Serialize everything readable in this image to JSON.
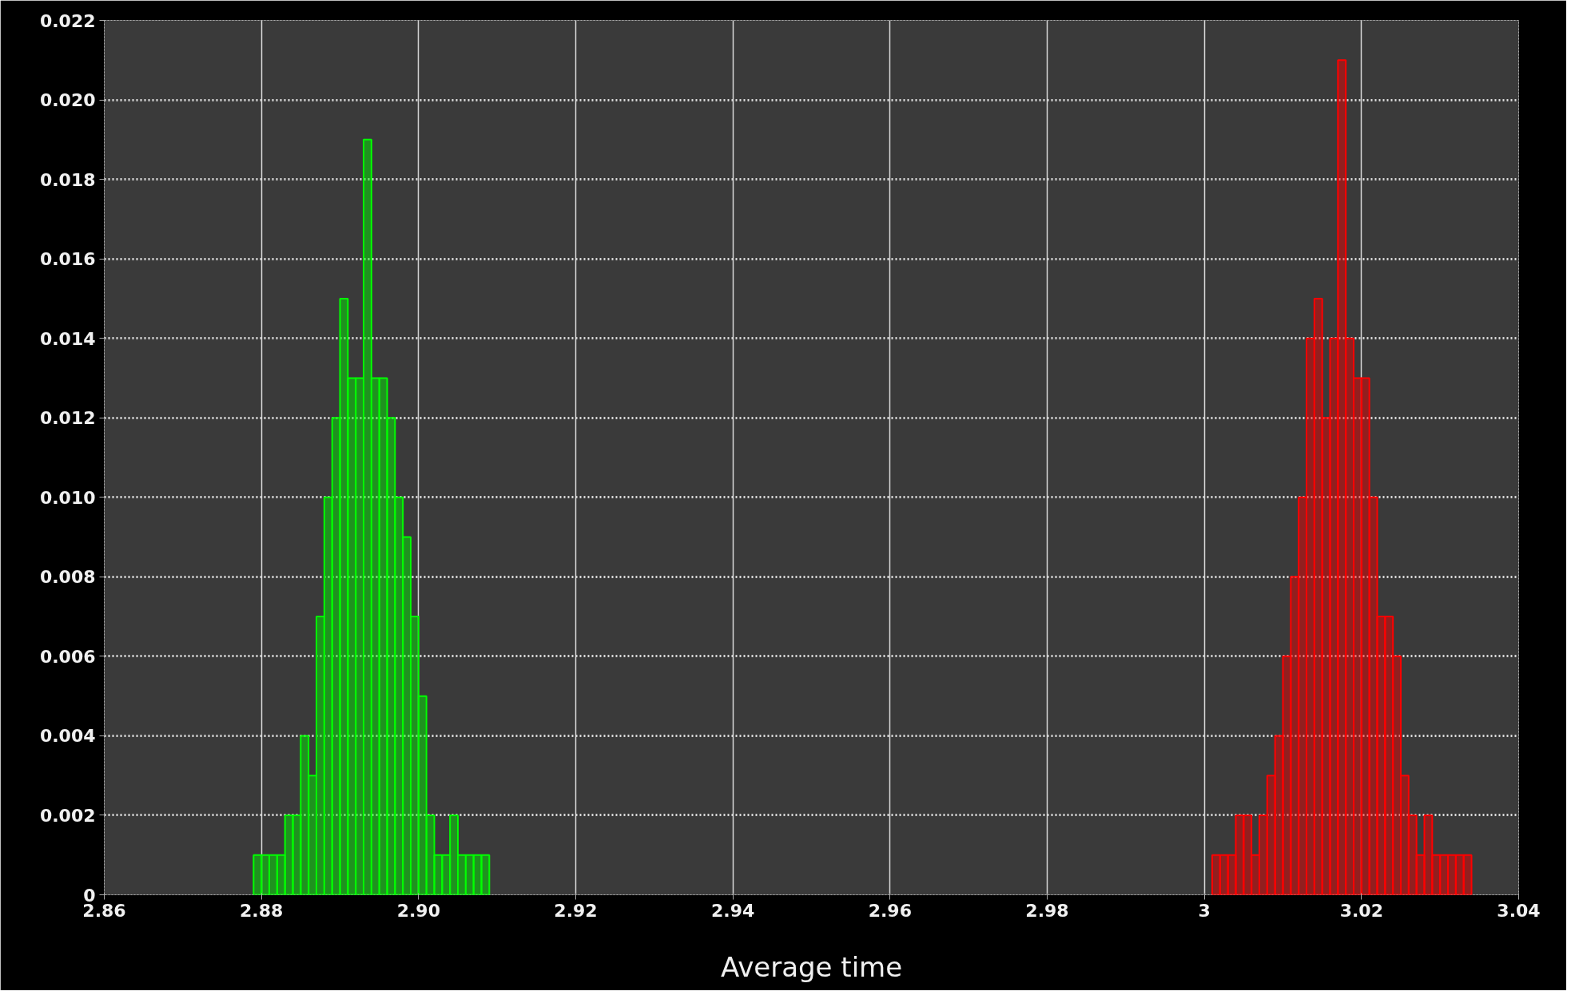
{
  "chart_data": {
    "type": "histogram",
    "xlabel": "Average time",
    "bins": [
      2.879,
      2.88,
      2.881,
      2.882,
      2.883,
      2.884,
      2.885,
      2.886,
      2.887,
      2.888,
      2.889,
      2.89,
      2.891,
      2.892,
      2.893,
      2.894,
      2.895,
      2.896,
      2.897,
      2.898,
      2.899,
      2.9,
      2.901,
      2.902,
      2.903,
      2.904,
      2.905,
      2.906,
      2.907,
      2.908,
      2.909,
      2.91,
      2.911,
      2.912,
      2.913,
      2.914,
      2.915,
      2.916,
      2.917,
      2.918,
      2.919,
      2.92,
      2.921,
      2.922,
      2.923,
      2.924,
      2.925,
      2.926,
      2.927,
      2.928,
      2.929,
      2.93,
      2.931,
      2.932,
      2.933,
      2.934,
      2.935,
      2.936,
      2.937,
      2.938,
      2.939,
      2.94,
      2.941,
      2.942,
      2.943,
      2.944,
      2.945,
      2.946,
      2.947,
      2.948,
      2.949,
      2.95,
      2.951,
      2.952,
      2.953,
      2.954,
      2.955,
      2.956,
      2.957,
      2.958,
      2.959,
      2.96,
      2.961,
      2.962,
      2.963,
      2.964,
      2.965,
      2.966,
      2.967,
      2.968,
      2.969,
      2.97,
      2.971,
      2.972,
      2.973,
      2.974,
      2.975,
      2.976,
      2.977,
      2.978,
      2.979,
      2.98,
      2.981,
      2.982,
      2.983,
      2.984,
      2.985,
      2.986,
      2.987,
      2.988,
      2.989,
      2.99,
      2.991,
      2.992,
      2.993,
      2.994,
      2.995,
      2.996,
      2.997,
      2.998,
      2.999,
      3.0,
      3.001,
      3.002,
      3.003,
      3.004,
      3.005,
      3.006,
      3.007,
      3.008,
      3.009,
      3.01,
      3.011,
      3.012,
      3.013,
      3.014,
      3.015,
      3.016,
      3.017,
      3.018,
      3.019,
      3.02,
      3.021,
      3.022,
      3.023,
      3.024,
      3.025,
      3.026,
      3.027,
      3.028,
      3.029,
      3.03,
      3.031,
      3.032,
      3.033,
      3.034
    ],
    "series": [
      {
        "color": "#00ff00",
        "values": [
          0.001,
          0.001,
          0.001,
          0.001,
          0.002,
          0.002,
          0.004,
          0.003,
          0.007,
          0.01,
          0.012,
          0.015,
          0.013,
          0.013,
          0.019,
          0.013,
          0.013,
          0.012,
          0.01,
          0.009,
          0.007,
          0.005,
          0.002,
          0.001,
          0.001,
          0.002,
          0.001,
          0.001,
          0.001,
          0.001,
          null,
          null,
          null,
          null,
          null,
          null,
          null,
          null,
          null,
          null,
          null,
          null,
          null,
          null,
          null,
          null,
          null,
          null,
          null,
          null,
          null,
          null,
          null,
          null,
          null,
          null,
          null,
          null,
          null,
          null,
          null,
          null,
          null,
          null,
          null,
          null,
          null,
          null,
          null,
          null,
          null,
          null,
          null,
          null,
          null,
          null,
          null,
          null,
          null,
          null,
          null,
          null,
          null,
          null,
          null,
          null,
          null,
          null,
          null,
          null,
          null,
          null,
          null,
          null,
          null,
          null,
          null,
          null,
          null,
          null,
          null,
          null,
          null,
          null,
          null,
          null,
          null,
          null,
          null,
          null,
          null,
          null,
          null,
          null,
          null,
          null,
          null,
          null,
          null,
          null,
          null,
          null,
          null,
          null,
          null,
          null,
          null,
          null,
          null,
          null,
          null,
          null,
          null,
          null,
          null,
          null,
          null,
          null,
          null,
          null,
          null,
          null,
          null,
          null,
          null,
          null,
          null,
          null,
          null,
          null,
          null,
          null,
          null,
          null,
          null
        ]
      },
      {
        "color": "#ff0000",
        "values": [
          null,
          null,
          null,
          null,
          null,
          null,
          null,
          null,
          null,
          null,
          null,
          null,
          null,
          null,
          null,
          null,
          null,
          null,
          null,
          null,
          null,
          null,
          null,
          null,
          null,
          null,
          null,
          null,
          null,
          null,
          null,
          null,
          null,
          null,
          null,
          null,
          null,
          null,
          null,
          null,
          null,
          null,
          null,
          null,
          null,
          null,
          null,
          null,
          null,
          null,
          null,
          null,
          null,
          null,
          null,
          null,
          null,
          null,
          null,
          null,
          null,
          null,
          null,
          null,
          null,
          null,
          null,
          null,
          null,
          null,
          null,
          null,
          null,
          null,
          null,
          null,
          null,
          null,
          null,
          null,
          null,
          null,
          null,
          null,
          null,
          null,
          null,
          null,
          null,
          null,
          null,
          null,
          null,
          null,
          null,
          null,
          null,
          null,
          null,
          null,
          null,
          null,
          null,
          null,
          null,
          null,
          null,
          null,
          null,
          null,
          null,
          null,
          null,
          null,
          null,
          null,
          null,
          null,
          null,
          null,
          null,
          null,
          0.001,
          0.001,
          0.001,
          0.002,
          0.002,
          0.001,
          0.002,
          0.003,
          0.004,
          0.006,
          0.008,
          0.01,
          0.014,
          0.015,
          0.012,
          0.014,
          0.021,
          0.014,
          0.013,
          0.013,
          0.01,
          0.007,
          0.007,
          0.006,
          0.003,
          0.002,
          0.001,
          0.002,
          0.001,
          0.001,
          0.001,
          0.001,
          0.001
        ]
      }
    ],
    "xlim": [
      2.86,
      3.04
    ],
    "xticks": [
      {
        "value": 2.86,
        "label": "2.86"
      },
      {
        "value": 2.88,
        "label": "2.88"
      },
      {
        "value": 2.9,
        "label": "2.90"
      },
      {
        "value": 2.92,
        "label": "2.92"
      },
      {
        "value": 2.94,
        "label": "2.94"
      },
      {
        "value": 2.96,
        "label": "2.96"
      },
      {
        "value": 2.98,
        "label": "2.98"
      },
      3,
      {
        "value": 3.02,
        "label": "3.02"
      },
      {
        "value": 3.04,
        "label": "3.04"
      }
    ],
    "ylim": [
      0,
      0.022
    ],
    "yticks": [
      0,
      {
        "value": 0.002,
        "label": "0.002"
      },
      {
        "value": 0.004,
        "label": "0.004"
      },
      {
        "value": 0.006,
        "label": "0.006"
      },
      {
        "value": 0.008,
        "label": "0.008"
      },
      {
        "value": 0.01,
        "label": "0.010"
      },
      {
        "value": 0.012,
        "label": "0.012"
      },
      {
        "value": 0.014,
        "label": "0.014"
      },
      {
        "value": 0.016,
        "label": "0.016"
      },
      {
        "value": 0.018,
        "label": "0.018"
      },
      {
        "value": 0.02,
        "label": "0.020"
      },
      {
        "value": 0.022,
        "label": "0.022"
      }
    ],
    "grid": true
  }
}
